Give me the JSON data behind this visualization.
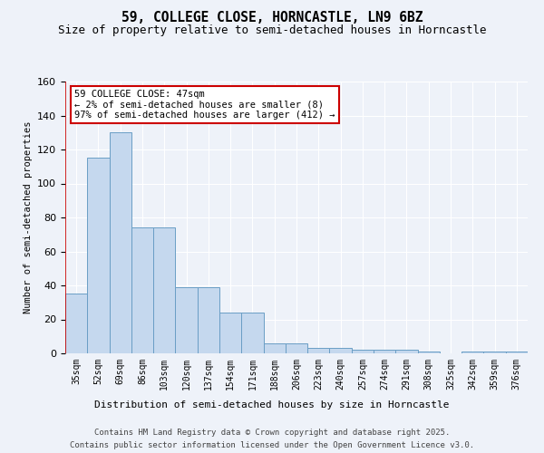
{
  "title": "59, COLLEGE CLOSE, HORNCASTLE, LN9 6BZ",
  "subtitle": "Size of property relative to semi-detached houses in Horncastle",
  "xlabel": "Distribution of semi-detached houses by size in Horncastle",
  "ylabel": "Number of semi-detached properties",
  "categories": [
    "35sqm",
    "52sqm",
    "69sqm",
    "86sqm",
    "103sqm",
    "120sqm",
    "137sqm",
    "154sqm",
    "171sqm",
    "188sqm",
    "206sqm",
    "223sqm",
    "240sqm",
    "257sqm",
    "274sqm",
    "291sqm",
    "308sqm",
    "325sqm",
    "342sqm",
    "359sqm",
    "376sqm"
  ],
  "values": [
    35,
    115,
    130,
    74,
    74,
    39,
    39,
    24,
    24,
    6,
    6,
    3,
    3,
    2,
    2,
    2,
    1,
    0,
    1,
    1,
    1
  ],
  "bar_color": "#c5d8ee",
  "bar_edge_color": "#6a9ec5",
  "vline_color": "#cc0000",
  "annotation_text": "59 COLLEGE CLOSE: 47sqm\n← 2% of semi-detached houses are smaller (8)\n97% of semi-detached houses are larger (412) →",
  "annotation_box_color": "white",
  "annotation_box_edge_color": "#cc0000",
  "footer_line1": "Contains HM Land Registry data © Crown copyright and database right 2025.",
  "footer_line2": "Contains public sector information licensed under the Open Government Licence v3.0.",
  "bg_color": "#eef2f9",
  "ylim": [
    0,
    160
  ],
  "title_fontsize": 10.5,
  "subtitle_fontsize": 9
}
